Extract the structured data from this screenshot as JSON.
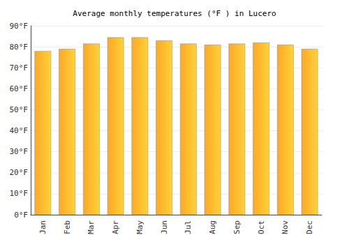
{
  "chart_data": {
    "type": "bar",
    "title": "Average monthly temperatures (°F ) in Lucero",
    "categories": [
      "Jan",
      "Feb",
      "Mar",
      "Apr",
      "May",
      "Jun",
      "Jul",
      "Aug",
      "Sep",
      "Oct",
      "Nov",
      "Dec"
    ],
    "values": [
      78,
      79,
      81.5,
      84.5,
      84.5,
      83,
      81.5,
      81,
      81.5,
      82,
      81,
      79
    ],
    "color": "#ffa824",
    "ylim": [
      0,
      90
    ],
    "yticks": [
      {
        "value": 0,
        "label": "0°F"
      },
      {
        "value": 10,
        "label": "10°F"
      },
      {
        "value": 20,
        "label": "20°F"
      },
      {
        "value": 30,
        "label": "30°F"
      },
      {
        "value": 40,
        "label": "40°F"
      },
      {
        "value": 50,
        "label": "50°F"
      },
      {
        "value": 60,
        "label": "60°F"
      },
      {
        "value": 70,
        "label": "70°F"
      },
      {
        "value": 80,
        "label": "80°F"
      },
      {
        "value": 90,
        "label": "90°F"
      }
    ],
    "grid": true
  }
}
